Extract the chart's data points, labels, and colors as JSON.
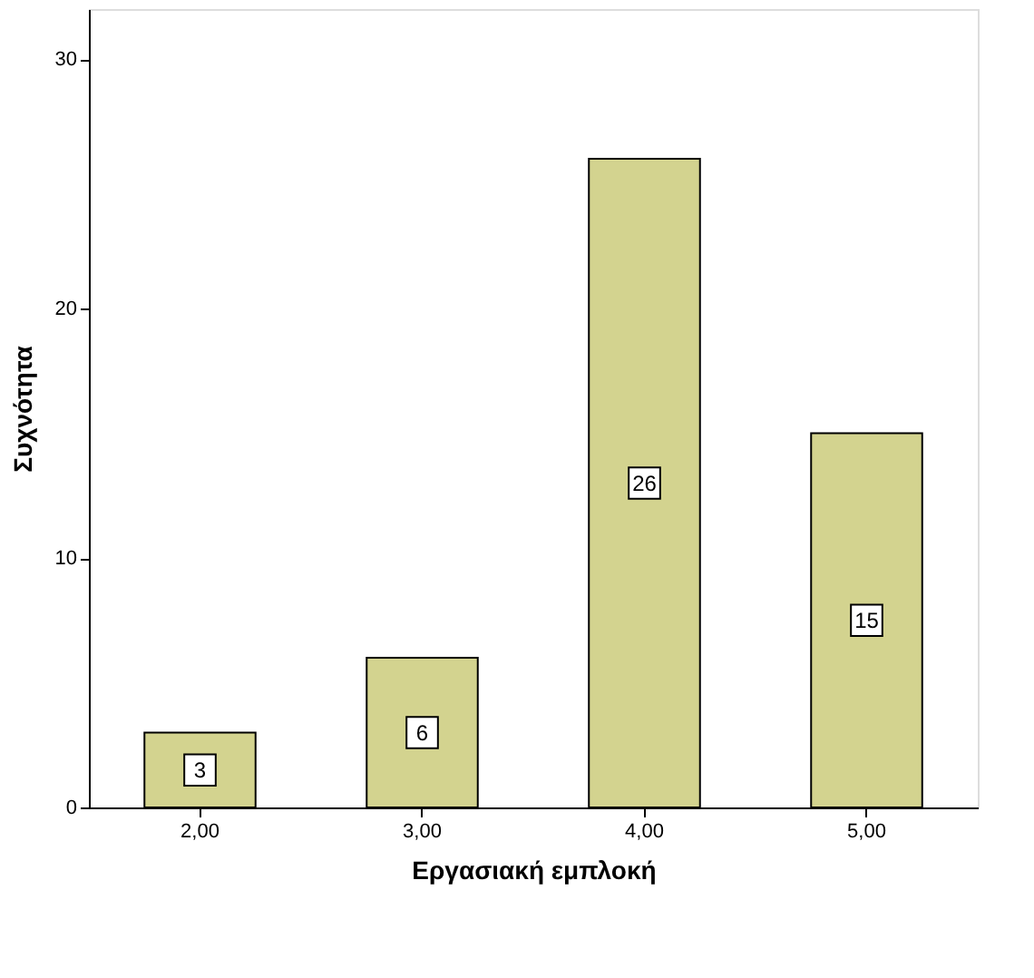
{
  "chart_data": {
    "type": "bar",
    "xlabel": "Εργασιακή εμπλοκή",
    "ylabel": "Συχνότητα",
    "categories": [
      "2,00",
      "3,00",
      "4,00",
      "5,00"
    ],
    "values": [
      3,
      6,
      26,
      15
    ],
    "color": "#d3d38f",
    "ylim": [
      0,
      32
    ],
    "yticks": [
      0,
      10,
      20,
      30
    ],
    "grid": false,
    "data_labels": true
  }
}
